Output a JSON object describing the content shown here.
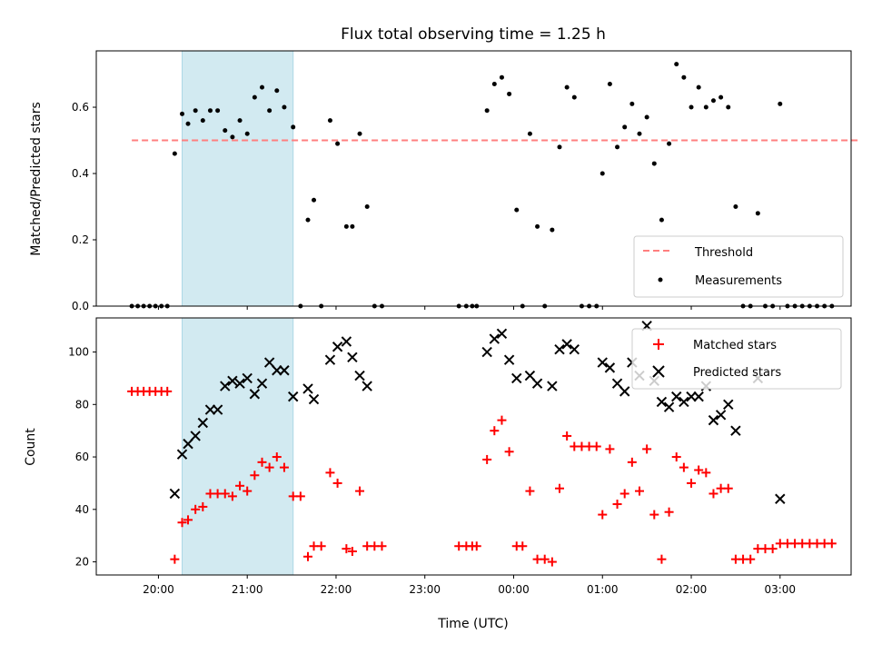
{
  "chart_data": [
    {
      "type": "scatter",
      "title": "Flux total observing time = 1.25 h",
      "xlabel": "",
      "ylabel": "Matched/Predicted stars",
      "xlim": [
        "19:18",
        "03:48"
      ],
      "ylim": [
        0,
        0.77
      ],
      "yticks": [
        0.0,
        0.2,
        0.4,
        0.6
      ],
      "highlight_band": {
        "x": [
          "20:16",
          "21:31"
        ],
        "color": "#add8e6"
      },
      "threshold": {
        "name": "Threshold",
        "y": 0.5,
        "x": [
          "19:42",
          "03:54"
        ],
        "color": "#ff7f7f",
        "style": "dashed"
      },
      "legend": {
        "position": "lower-right",
        "entries": [
          "Threshold",
          "Measurements"
        ]
      },
      "series": [
        {
          "name": "Measurements",
          "marker": "dot",
          "color": "#000000",
          "points": [
            [
              "19:42",
              0
            ],
            [
              "19:46",
              0
            ],
            [
              "19:50",
              0
            ],
            [
              "19:54",
              0
            ],
            [
              "19:58",
              0
            ],
            [
              "20:02",
              0
            ],
            [
              "20:06",
              0
            ],
            [
              "20:11",
              0.46
            ],
            [
              "20:16",
              0.58
            ],
            [
              "20:20",
              0.55
            ],
            [
              "20:25",
              0.59
            ],
            [
              "20:30",
              0.56
            ],
            [
              "20:35",
              0.59
            ],
            [
              "20:40",
              0.59
            ],
            [
              "20:45",
              0.53
            ],
            [
              "20:50",
              0.51
            ],
            [
              "20:55",
              0.56
            ],
            [
              "21:00",
              0.52
            ],
            [
              "21:05",
              0.63
            ],
            [
              "21:10",
              0.66
            ],
            [
              "21:15",
              0.59
            ],
            [
              "21:20",
              0.65
            ],
            [
              "21:25",
              0.6
            ],
            [
              "21:31",
              0.54
            ],
            [
              "21:36",
              0
            ],
            [
              "21:41",
              0.26
            ],
            [
              "21:45",
              0.32
            ],
            [
              "21:50",
              0
            ],
            [
              "21:56",
              0.56
            ],
            [
              "22:01",
              0.49
            ],
            [
              "22:07",
              0.24
            ],
            [
              "22:11",
              0.24
            ],
            [
              "22:16",
              0.52
            ],
            [
              "22:21",
              0.3
            ],
            [
              "22:26",
              0
            ],
            [
              "22:31",
              0
            ],
            [
              "23:23",
              0
            ],
            [
              "23:28",
              0
            ],
            [
              "23:32",
              0
            ],
            [
              "23:35",
              0
            ],
            [
              "23:42",
              0.59
            ],
            [
              "23:47",
              0.67
            ],
            [
              "23:52",
              0.69
            ],
            [
              "23:57",
              0.64
            ],
            [
              "00:02",
              0.29
            ],
            [
              "00:06",
              0
            ],
            [
              "00:11",
              0.52
            ],
            [
              "00:16",
              0.24
            ],
            [
              "00:21",
              0
            ],
            [
              "00:26",
              0.23
            ],
            [
              "00:31",
              0.48
            ],
            [
              "00:36",
              0.66
            ],
            [
              "00:41",
              0.63
            ],
            [
              "00:46",
              0
            ],
            [
              "00:51",
              0
            ],
            [
              "00:56",
              0
            ],
            [
              "01:00",
              0.4
            ],
            [
              "01:05",
              0.67
            ],
            [
              "01:10",
              0.48
            ],
            [
              "01:15",
              0.54
            ],
            [
              "01:20",
              0.61
            ],
            [
              "01:25",
              0.52
            ],
            [
              "01:30",
              0.57
            ],
            [
              "01:35",
              0.43
            ],
            [
              "01:40",
              0.26
            ],
            [
              "01:45",
              0.49
            ],
            [
              "01:50",
              0.73
            ],
            [
              "01:55",
              0.69
            ],
            [
              "02:00",
              0.6
            ],
            [
              "02:05",
              0.66
            ],
            [
              "02:10",
              0.6
            ],
            [
              "02:15",
              0.62
            ],
            [
              "02:20",
              0.63
            ],
            [
              "02:25",
              0.6
            ],
            [
              "02:30",
              0.3
            ],
            [
              "02:35",
              0
            ],
            [
              "02:40",
              0
            ],
            [
              "02:45",
              0.28
            ],
            [
              "02:50",
              0
            ],
            [
              "02:55",
              0
            ],
            [
              "03:00",
              0.61
            ],
            [
              "03:05",
              0
            ],
            [
              "03:10",
              0
            ],
            [
              "03:15",
              0
            ],
            [
              "03:20",
              0
            ],
            [
              "03:25",
              0
            ],
            [
              "03:30",
              0
            ],
            [
              "03:35",
              0
            ]
          ]
        }
      ]
    },
    {
      "type": "scatter",
      "title": "",
      "xlabel": "Time (UTC)",
      "ylabel": "Count",
      "xlim": [
        "19:18",
        "03:48"
      ],
      "ylim": [
        15,
        113
      ],
      "yticks": [
        20,
        40,
        60,
        80,
        100
      ],
      "xticks": [
        "20:00",
        "21:00",
        "22:00",
        "23:00",
        "00:00",
        "01:00",
        "02:00",
        "03:00"
      ],
      "highlight_band": {
        "x": [
          "20:16",
          "21:31"
        ],
        "color": "#add8e6"
      },
      "legend": {
        "position": "top-right",
        "entries": [
          "Matched stars",
          "Predicted stars"
        ]
      },
      "series": [
        {
          "name": "Matched stars",
          "marker": "plus",
          "color": "#ff0000",
          "points": [
            [
              "19:42",
              85
            ],
            [
              "19:46",
              85
            ],
            [
              "19:50",
              85
            ],
            [
              "19:54",
              85
            ],
            [
              "19:58",
              85
            ],
            [
              "20:02",
              85
            ],
            [
              "20:06",
              85
            ],
            [
              "20:11",
              21
            ],
            [
              "20:16",
              35
            ],
            [
              "20:20",
              36
            ],
            [
              "20:25",
              40
            ],
            [
              "20:30",
              41
            ],
            [
              "20:35",
              46
            ],
            [
              "20:40",
              46
            ],
            [
              "20:45",
              46
            ],
            [
              "20:50",
              45
            ],
            [
              "20:55",
              49
            ],
            [
              "21:00",
              47
            ],
            [
              "21:05",
              53
            ],
            [
              "21:10",
              58
            ],
            [
              "21:15",
              56
            ],
            [
              "21:20",
              60
            ],
            [
              "21:25",
              56
            ],
            [
              "21:31",
              45
            ],
            [
              "21:36",
              45
            ],
            [
              "21:41",
              22
            ],
            [
              "21:45",
              26
            ],
            [
              "21:50",
              26
            ],
            [
              "21:56",
              54
            ],
            [
              "22:01",
              50
            ],
            [
              "22:07",
              25
            ],
            [
              "22:11",
              24
            ],
            [
              "22:16",
              47
            ],
            [
              "22:21",
              26
            ],
            [
              "22:26",
              26
            ],
            [
              "22:31",
              26
            ],
            [
              "23:23",
              26
            ],
            [
              "23:28",
              26
            ],
            [
              "23:32",
              26
            ],
            [
              "23:35",
              26
            ],
            [
              "23:42",
              59
            ],
            [
              "23:47",
              70
            ],
            [
              "23:52",
              74
            ],
            [
              "23:57",
              62
            ],
            [
              "00:02",
              26
            ],
            [
              "00:06",
              26
            ],
            [
              "00:11",
              47
            ],
            [
              "00:16",
              21
            ],
            [
              "00:21",
              21
            ],
            [
              "00:26",
              20
            ],
            [
              "00:31",
              48
            ],
            [
              "00:36",
              68
            ],
            [
              "00:41",
              64
            ],
            [
              "00:46",
              64
            ],
            [
              "00:51",
              64
            ],
            [
              "00:56",
              64
            ],
            [
              "01:00",
              38
            ],
            [
              "01:05",
              63
            ],
            [
              "01:10",
              42
            ],
            [
              "01:15",
              46
            ],
            [
              "01:20",
              58
            ],
            [
              "01:25",
              47
            ],
            [
              "01:30",
              63
            ],
            [
              "01:35",
              38
            ],
            [
              "01:40",
              21
            ],
            [
              "01:45",
              39
            ],
            [
              "01:50",
              60
            ],
            [
              "01:55",
              56
            ],
            [
              "02:00",
              50
            ],
            [
              "02:05",
              55
            ],
            [
              "02:10",
              54
            ],
            [
              "02:15",
              46
            ],
            [
              "02:20",
              48
            ],
            [
              "02:25",
              48
            ],
            [
              "02:30",
              21
            ],
            [
              "02:35",
              21
            ],
            [
              "02:40",
              21
            ],
            [
              "02:45",
              25
            ],
            [
              "02:50",
              25
            ],
            [
              "02:55",
              25
            ],
            [
              "03:00",
              27
            ],
            [
              "03:05",
              27
            ],
            [
              "03:10",
              27
            ],
            [
              "03:15",
              27
            ],
            [
              "03:20",
              27
            ],
            [
              "03:25",
              27
            ],
            [
              "03:30",
              27
            ],
            [
              "03:35",
              27
            ]
          ]
        },
        {
          "name": "Predicted stars",
          "marker": "x",
          "color": "#000000",
          "points": [
            [
              "20:11",
              46
            ],
            [
              "20:16",
              61
            ],
            [
              "20:20",
              65
            ],
            [
              "20:25",
              68
            ],
            [
              "20:30",
              73
            ],
            [
              "20:35",
              78
            ],
            [
              "20:40",
              78
            ],
            [
              "20:45",
              87
            ],
            [
              "20:50",
              89
            ],
            [
              "20:55",
              88
            ],
            [
              "21:00",
              90
            ],
            [
              "21:05",
              84
            ],
            [
              "21:10",
              88
            ],
            [
              "21:15",
              96
            ],
            [
              "21:20",
              93
            ],
            [
              "21:25",
              93
            ],
            [
              "21:31",
              83
            ],
            [
              "21:41",
              86
            ],
            [
              "21:45",
              82
            ],
            [
              "21:56",
              97
            ],
            [
              "22:01",
              102
            ],
            [
              "22:07",
              104
            ],
            [
              "22:11",
              98
            ],
            [
              "22:16",
              91
            ],
            [
              "22:21",
              87
            ],
            [
              "23:42",
              100
            ],
            [
              "23:47",
              105
            ],
            [
              "23:52",
              107
            ],
            [
              "23:57",
              97
            ],
            [
              "00:02",
              90
            ],
            [
              "00:11",
              91
            ],
            [
              "00:16",
              88
            ],
            [
              "00:26",
              87
            ],
            [
              "00:31",
              101
            ],
            [
              "00:36",
              103
            ],
            [
              "00:41",
              101
            ],
            [
              "01:00",
              96
            ],
            [
              "01:05",
              94
            ],
            [
              "01:10",
              88
            ],
            [
              "01:15",
              85
            ],
            [
              "01:20",
              96
            ],
            [
              "01:25",
              91
            ],
            [
              "01:30",
              110
            ],
            [
              "01:35",
              89
            ],
            [
              "01:40",
              81
            ],
            [
              "01:45",
              79
            ],
            [
              "01:50",
              83
            ],
            [
              "01:55",
              81
            ],
            [
              "02:00",
              83
            ],
            [
              "02:05",
              83
            ],
            [
              "02:10",
              87
            ],
            [
              "02:15",
              74
            ],
            [
              "02:20",
              76
            ],
            [
              "02:25",
              80
            ],
            [
              "02:30",
              70
            ],
            [
              "02:45",
              90
            ],
            [
              "03:00",
              44
            ]
          ]
        }
      ]
    }
  ]
}
